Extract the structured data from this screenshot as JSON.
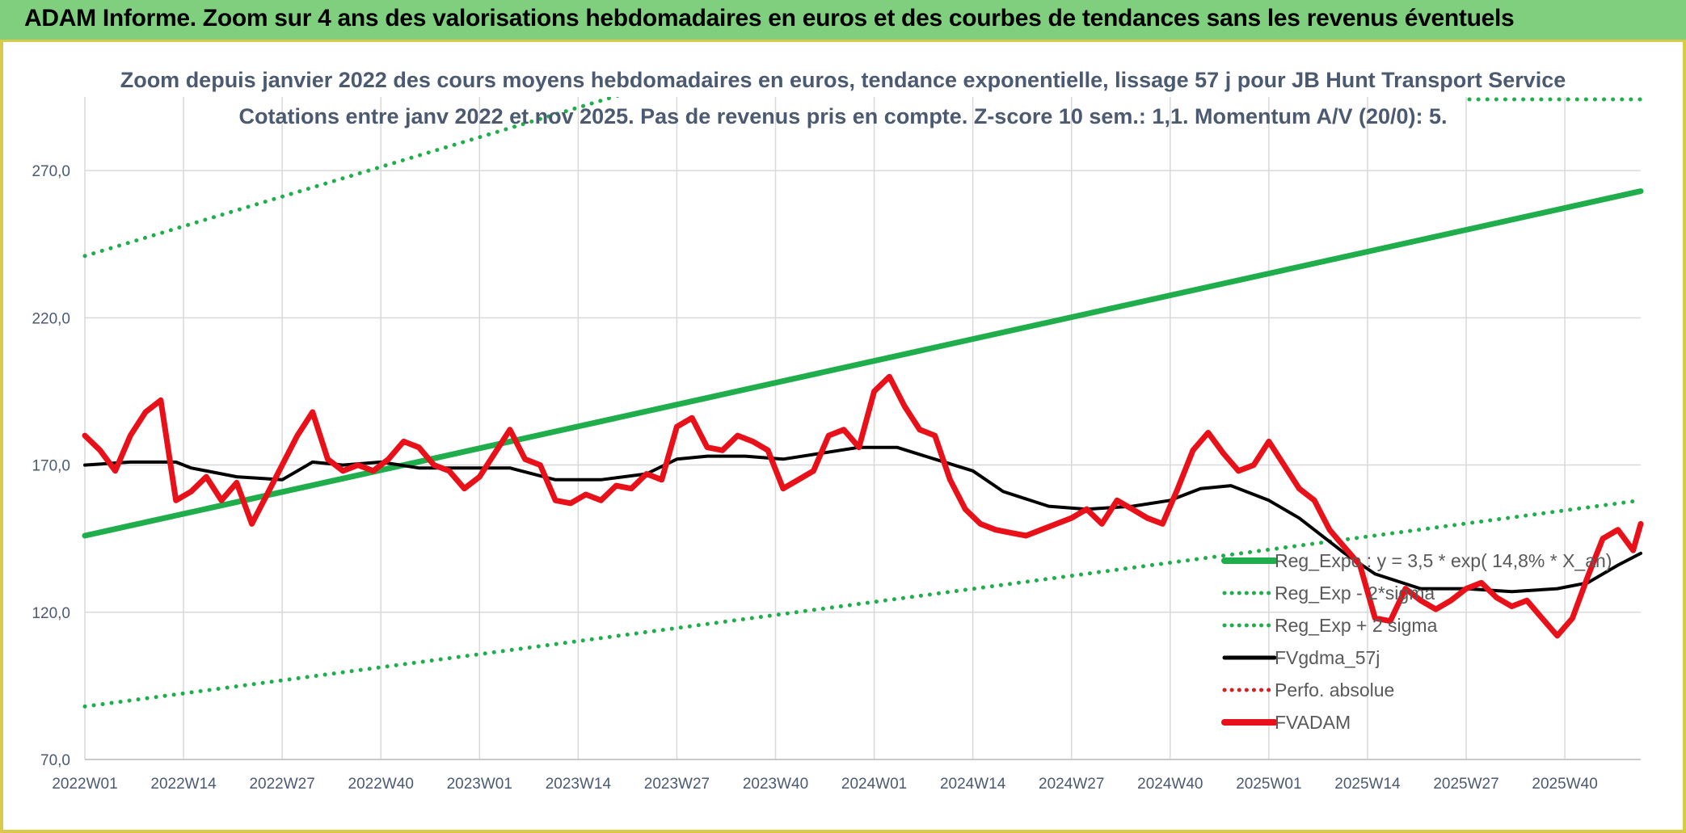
{
  "banner": {
    "title": "ADAM Informe. Zoom sur 4 ans des valorisations hebdomadaires en euros et des courbes de tendances sans les revenus éventuels"
  },
  "chart_data": {
    "type": "line",
    "subtitle_lines": [
      "Zoom depuis janvier 2022 des cours moyens hebdomadaires en euros, tendance exponentielle, lissage 57 j pour JB Hunt Transport Service",
      "Cotations entre janv 2022 et nov 2025. Pas de revenus pris en compte. Z-score 10 sem.: 1,1. Momentum A/V (20/0): 5."
    ],
    "x_tick_labels": [
      "2022W01",
      "2022W14",
      "2022W27",
      "2022W40",
      "2023W01",
      "2023W14",
      "2023W27",
      "2023W40",
      "2024W01",
      "2024W14",
      "2024W27",
      "2024W40",
      "2025W01",
      "2025W14",
      "2025W27",
      "2025W40"
    ],
    "x_tick_week_index": [
      0,
      13,
      26,
      39,
      52,
      65,
      78,
      91,
      104,
      117,
      130,
      143,
      156,
      169,
      182,
      195
    ],
    "x_range": [
      0,
      205
    ],
    "y_tick_labels": [
      "70,0",
      "120,0",
      "170,0",
      "220,0",
      "270,0"
    ],
    "y_ticks": [
      70,
      120,
      170,
      220,
      270
    ],
    "ylim": [
      70,
      295
    ],
    "grid": true,
    "legend_position": "bottom-right",
    "colors": {
      "reg_exp": "#1fae4b",
      "reg_exp_minus": "#1fae4b",
      "reg_exp_plus": "#1fae4b",
      "fvgdma": "#000000",
      "perfo": "#d42020",
      "fvadam": "#e8111a",
      "grid": "#d9d9d9"
    },
    "series": [
      {
        "name": "Reg_Expo : y = 3,5 * exp( 14,8% * X_an)",
        "key": "reg_exp",
        "style": "solid",
        "x": [
          0,
          205
        ],
        "y": [
          146,
          263
        ]
      },
      {
        "name": "Reg_Exp - 2*sigma",
        "key": "reg_exp_minus",
        "style": "dotted",
        "x": [
          0,
          205
        ],
        "y": [
          88,
          158
        ]
      },
      {
        "name": "Reg_Exp + 2 sigma",
        "key": "reg_exp_plus",
        "style": "dotted",
        "x": [
          0,
          205
        ],
        "y": [
          241,
          400
        ]
      },
      {
        "name": "FVgdma_57j",
        "key": "fvgdma",
        "style": "solid",
        "x": [
          0,
          6,
          12,
          14,
          20,
          26,
          30,
          34,
          39,
          44,
          52,
          56,
          62,
          68,
          74,
          78,
          82,
          87,
          92,
          97,
          102,
          107,
          112,
          117,
          121,
          127,
          132,
          138,
          143,
          147,
          151,
          156,
          160,
          166,
          170,
          176,
          182,
          188,
          194,
          198,
          202,
          205
        ],
        "y": [
          170,
          171,
          171,
          169,
          166,
          165,
          171,
          170,
          171,
          169,
          169,
          169,
          165,
          165,
          167,
          172,
          173,
          173,
          172,
          174,
          176,
          176,
          172,
          168,
          161,
          156,
          155,
          156,
          158,
          162,
          163,
          158,
          152,
          140,
          133,
          128,
          128,
          127,
          128,
          130,
          136,
          140
        ]
      },
      {
        "name": "Perfo. absolue",
        "key": "perfo",
        "style": "dotted",
        "x": [],
        "y": []
      },
      {
        "name": "FVADAM",
        "key": "fvadam",
        "style": "solid",
        "x": [
          0,
          2,
          4,
          6,
          8,
          10,
          12,
          14,
          16,
          18,
          20,
          22,
          24,
          26,
          28,
          30,
          32,
          34,
          36,
          38,
          40,
          42,
          44,
          46,
          48,
          50,
          52,
          54,
          56,
          58,
          60,
          62,
          64,
          66,
          68,
          70,
          72,
          74,
          76,
          78,
          80,
          82,
          84,
          86,
          88,
          90,
          92,
          94,
          96,
          98,
          100,
          102,
          104,
          106,
          108,
          110,
          112,
          114,
          116,
          118,
          120,
          122,
          124,
          126,
          128,
          130,
          132,
          134,
          136,
          138,
          140,
          142,
          144,
          146,
          148,
          150,
          152,
          154,
          156,
          158,
          160,
          162,
          164,
          166,
          168,
          170,
          172,
          174,
          176,
          178,
          180,
          182,
          184,
          186,
          188,
          190,
          192,
          194,
          196,
          198,
          200,
          202,
          204,
          205
        ],
        "y": [
          180,
          175,
          168,
          180,
          188,
          192,
          158,
          161,
          166,
          158,
          164,
          150,
          160,
          170,
          180,
          188,
          172,
          168,
          170,
          168,
          172,
          178,
          176,
          170,
          168,
          162,
          166,
          174,
          182,
          172,
          170,
          158,
          157,
          160,
          158,
          163,
          162,
          167,
          165,
          183,
          186,
          176,
          175,
          180,
          178,
          175,
          162,
          165,
          168,
          180,
          182,
          176,
          195,
          200,
          190,
          182,
          180,
          165,
          155,
          150,
          148,
          147,
          146,
          148,
          150,
          152,
          155,
          150,
          158,
          155,
          152,
          150,
          162,
          175,
          181,
          174,
          168,
          170,
          178,
          170,
          162,
          158,
          148,
          142,
          136,
          118,
          117,
          128,
          124,
          121,
          124,
          128,
          130,
          125,
          122,
          124,
          118,
          112,
          118,
          132,
          145,
          148,
          141,
          150
        ]
      }
    ]
  }
}
